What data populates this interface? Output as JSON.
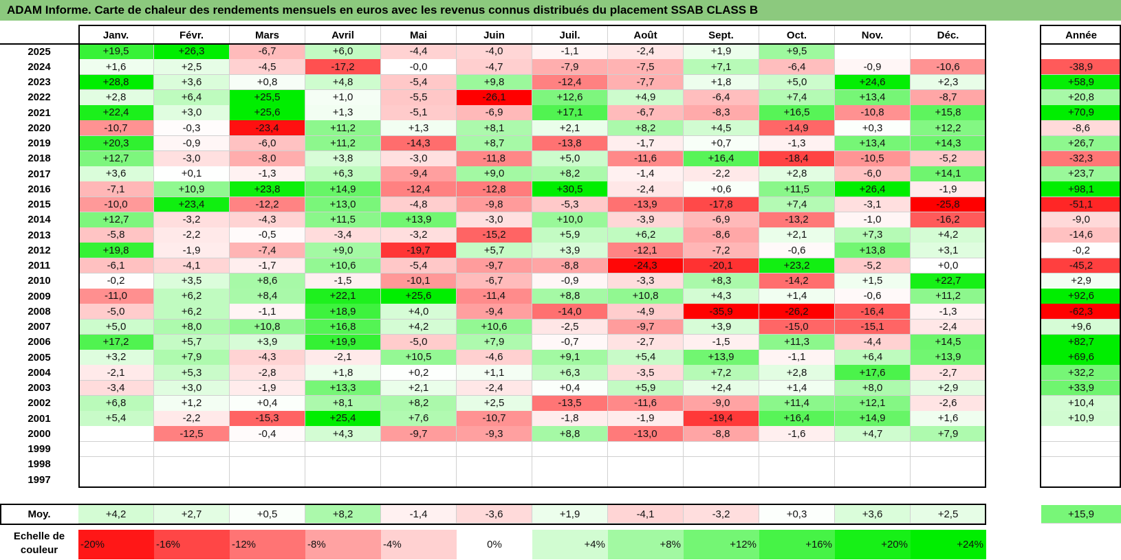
{
  "title": "ADAM Informe. Carte de chaleur des rendements mensuels en euros avec les revenus connus distribués du placement SSAB CLASS B",
  "chart_data": {
    "type": "heatmap",
    "title": "ADAM Informe. Carte de chaleur des rendements mensuels en euros avec les revenus connus distribués du placement SSAB CLASS B",
    "columns": [
      "Janv.",
      "Févr.",
      "Mars",
      "Avril",
      "Mai",
      "Juin",
      "Juil.",
      "Août",
      "Sept.",
      "Oct.",
      "Nov.",
      "Déc."
    ],
    "year_header": "Année",
    "rows": [
      {
        "year": "2025",
        "values": [
          "+19,5",
          "+26,3",
          "-6,7",
          "+6,0",
          "-4,4",
          "-4,0",
          "-1,1",
          "-2,4",
          "+1,9",
          "+9,5",
          "",
          ""
        ],
        "annual": ""
      },
      {
        "year": "2024",
        "values": [
          "+1,6",
          "+2,5",
          "-4,5",
          "-17,2",
          "-0,0",
          "-4,7",
          "-7,9",
          "-7,5",
          "+7,1",
          "-6,4",
          "-0,9",
          "-10,6"
        ],
        "annual": "-38,9"
      },
      {
        "year": "2023",
        "values": [
          "+28,8",
          "+3,6",
          "+0,8",
          "+4,8",
          "-5,4",
          "+9,8",
          "-12,4",
          "-7,7",
          "+1,8",
          "+5,0",
          "+24,6",
          "+2,3"
        ],
        "annual": "+58,9"
      },
      {
        "year": "2022",
        "values": [
          "+2,8",
          "+6,4",
          "+25,5",
          "+1,0",
          "-5,5",
          "-26,1",
          "+12,6",
          "+4,9",
          "-6,4",
          "+7,4",
          "+13,4",
          "-8,7"
        ],
        "annual": "+20,8"
      },
      {
        "year": "2021",
        "values": [
          "+22,4",
          "+3,0",
          "+25,6",
          "+1,3",
          "-5,1",
          "-6,9",
          "+17,1",
          "-6,7",
          "-8,3",
          "+16,5",
          "-10,8",
          "+15,8"
        ],
        "annual": "+70,9"
      },
      {
        "year": "2020",
        "values": [
          "-10,7",
          "-0,3",
          "-23,4",
          "+11,2",
          "+1,3",
          "+8,1",
          "+2,1",
          "+8,2",
          "+4,5",
          "-14,9",
          "+0,3",
          "+12,2"
        ],
        "annual": "-8,6"
      },
      {
        "year": "2019",
        "values": [
          "+20,3",
          "-0,9",
          "-6,0",
          "+11,2",
          "-14,3",
          "+8,7",
          "-13,8",
          "-1,7",
          "+0,7",
          "-1,3",
          "+13,4",
          "+14,3"
        ],
        "annual": "+26,7"
      },
      {
        "year": "2018",
        "values": [
          "+12,7",
          "-3,0",
          "-8,0",
          "+3,8",
          "-3,0",
          "-11,8",
          "+5,0",
          "-11,6",
          "+16,4",
          "-18,4",
          "-10,5",
          "-5,2"
        ],
        "annual": "-32,3"
      },
      {
        "year": "2017",
        "values": [
          "+3,6",
          "+0,1",
          "-1,3",
          "+6,3",
          "-9,4",
          "+9,0",
          "+8,2",
          "-1,4",
          "-2,2",
          "+2,8",
          "-6,0",
          "+14,1"
        ],
        "annual": "+23,7"
      },
      {
        "year": "2016",
        "values": [
          "-7,1",
          "+10,9",
          "+23,8",
          "+14,9",
          "-12,4",
          "-12,8",
          "+30,5",
          "-2,4",
          "+0,6",
          "+11,5",
          "+26,4",
          "-1,9"
        ],
        "annual": "+98,1"
      },
      {
        "year": "2015",
        "values": [
          "-10,0",
          "+23,4",
          "-12,2",
          "+13,0",
          "-4,8",
          "-9,8",
          "-5,3",
          "-13,9",
          "-17,8",
          "+7,4",
          "-3,1",
          "-25,8"
        ],
        "annual": "-51,1"
      },
      {
        "year": "2014",
        "values": [
          "+12,7",
          "-3,2",
          "-4,3",
          "+11,5",
          "+13,9",
          "-3,0",
          "+10,0",
          "-3,9",
          "-6,9",
          "-13,2",
          "-1,0",
          "-16,2"
        ],
        "annual": "-9,0"
      },
      {
        "year": "2013",
        "values": [
          "-5,8",
          "-2,2",
          "-0,5",
          "-3,4",
          "-3,2",
          "-15,2",
          "+5,9",
          "+6,2",
          "-8,6",
          "+2,1",
          "+7,3",
          "+4,2"
        ],
        "annual": "-14,6"
      },
      {
        "year": "2012",
        "values": [
          "+19,8",
          "-1,9",
          "-7,4",
          "+9,0",
          "-19,7",
          "+5,7",
          "+3,9",
          "-12,1",
          "-7,2",
          "-0,6",
          "+13,8",
          "+3,1"
        ],
        "annual": "-0,2"
      },
      {
        "year": "2011",
        "values": [
          "-6,1",
          "-4,1",
          "-1,7",
          "+10,6",
          "-5,4",
          "-9,7",
          "-8,8",
          "-24,3",
          "-20,1",
          "+23,2",
          "-5,2",
          "+0,0"
        ],
        "annual": "-45,2"
      },
      {
        "year": "2010",
        "values": [
          "-0,2",
          "+3,5",
          "+8,6",
          "-1,5",
          "-10,1",
          "-6,7",
          "-0,9",
          "-3,3",
          "+8,3",
          "-14,2",
          "+1,5",
          "+22,7"
        ],
        "annual": "+2,9"
      },
      {
        "year": "2009",
        "values": [
          "-11,0",
          "+6,2",
          "+8,4",
          "+22,1",
          "+25,6",
          "-11,4",
          "+8,8",
          "+10,8",
          "+4,3",
          "+1,4",
          "-0,6",
          "+11,2"
        ],
        "annual": "+92,6"
      },
      {
        "year": "2008",
        "values": [
          "-5,0",
          "+6,2",
          "-1,1",
          "+18,9",
          "+4,0",
          "-9,4",
          "-14,0",
          "-4,9",
          "-35,9",
          "-26,2",
          "-16,4",
          "-1,3"
        ],
        "annual": "-62,3"
      },
      {
        "year": "2007",
        "values": [
          "+5,0",
          "+8,0",
          "+10,8",
          "+16,8",
          "+4,2",
          "+10,6",
          "-2,5",
          "-9,7",
          "+3,9",
          "-15,0",
          "-15,1",
          "-2,4"
        ],
        "annual": "+9,6"
      },
      {
        "year": "2006",
        "values": [
          "+17,2",
          "+5,7",
          "+3,9",
          "+19,9",
          "-5,0",
          "+7,9",
          "-0,7",
          "-2,7",
          "-1,5",
          "+11,3",
          "-4,4",
          "+14,5"
        ],
        "annual": "+82,7"
      },
      {
        "year": "2005",
        "values": [
          "+3,2",
          "+7,9",
          "-4,3",
          "-2,1",
          "+10,5",
          "-4,6",
          "+9,1",
          "+5,4",
          "+13,9",
          "-1,1",
          "+6,4",
          "+13,9"
        ],
        "annual": "+69,6"
      },
      {
        "year": "2004",
        "values": [
          "-2,1",
          "+5,3",
          "-2,8",
          "+1,8",
          "+0,2",
          "+1,1",
          "+6,3",
          "-3,5",
          "+7,2",
          "+2,8",
          "+17,6",
          "-2,7"
        ],
        "annual": "+32,2"
      },
      {
        "year": "2003",
        "values": [
          "-3,4",
          "+3,0",
          "-1,9",
          "+13,3",
          "+2,1",
          "-2,4",
          "+0,4",
          "+5,9",
          "+2,4",
          "+1,4",
          "+8,0",
          "+2,9"
        ],
        "annual": "+33,9"
      },
      {
        "year": "2002",
        "values": [
          "+6,8",
          "+1,2",
          "+0,4",
          "+8,1",
          "+8,2",
          "+2,5",
          "-13,5",
          "-11,6",
          "-9,0",
          "+11,4",
          "+12,1",
          "-2,6"
        ],
        "annual": "+10,4"
      },
      {
        "year": "2001",
        "values": [
          "+5,4",
          "-2,2",
          "-15,3",
          "+25,4",
          "+7,6",
          "-10,7",
          "-1,8",
          "-1,9",
          "-19,4",
          "+16,4",
          "+14,9",
          "+1,6"
        ],
        "annual": "+10,9"
      },
      {
        "year": "2000",
        "values": [
          "",
          "-12,5",
          "-0,4",
          "+4,3",
          "-9,7",
          "-9,3",
          "+8,8",
          "-13,0",
          "-8,8",
          "-1,6",
          "+4,7",
          "+7,9"
        ],
        "annual": ""
      },
      {
        "year": "1999",
        "values": [
          "",
          "",
          "",
          "",
          "",
          "",
          "",
          "",
          "",
          "",
          "",
          ""
        ],
        "annual": ""
      },
      {
        "year": "1998",
        "values": [
          "",
          "",
          "",
          "",
          "",
          "",
          "",
          "",
          "",
          "",
          "",
          ""
        ],
        "annual": ""
      },
      {
        "year": "1997",
        "values": [
          "",
          "",
          "",
          "",
          "",
          "",
          "",
          "",
          "",
          "",
          "",
          ""
        ],
        "annual": ""
      }
    ],
    "average": {
      "label": "Moy.",
      "values": [
        "+4,2",
        "+2,7",
        "+0,5",
        "+8,2",
        "-1,4",
        "-3,6",
        "+1,9",
        "-4,1",
        "-3,2",
        "+0,3",
        "+3,6",
        "+2,5"
      ],
      "annual": "+15,9"
    },
    "scale": {
      "label": "Echelle de couleur",
      "steps": [
        {
          "label": "-20%",
          "value": -20
        },
        {
          "label": "-16%",
          "value": -16
        },
        {
          "label": "-12%",
          "value": -12
        },
        {
          "label": "-8%",
          "value": -8
        },
        {
          "label": "-4%",
          "value": -4
        },
        {
          "label": "0%",
          "value": 0
        },
        {
          "label": "+4%",
          "value": 4
        },
        {
          "label": "+8%",
          "value": 8
        },
        {
          "label": "+12%",
          "value": 12
        },
        {
          "label": "+16%",
          "value": 16
        },
        {
          "label": "+20%",
          "value": 20
        },
        {
          "label": "+24%",
          "value": 24
        }
      ]
    },
    "colors": {
      "negative": "#ff0000",
      "neutral": "#ffffff",
      "positive": "#00ee00",
      "title_bg": "#8cc97e"
    }
  }
}
